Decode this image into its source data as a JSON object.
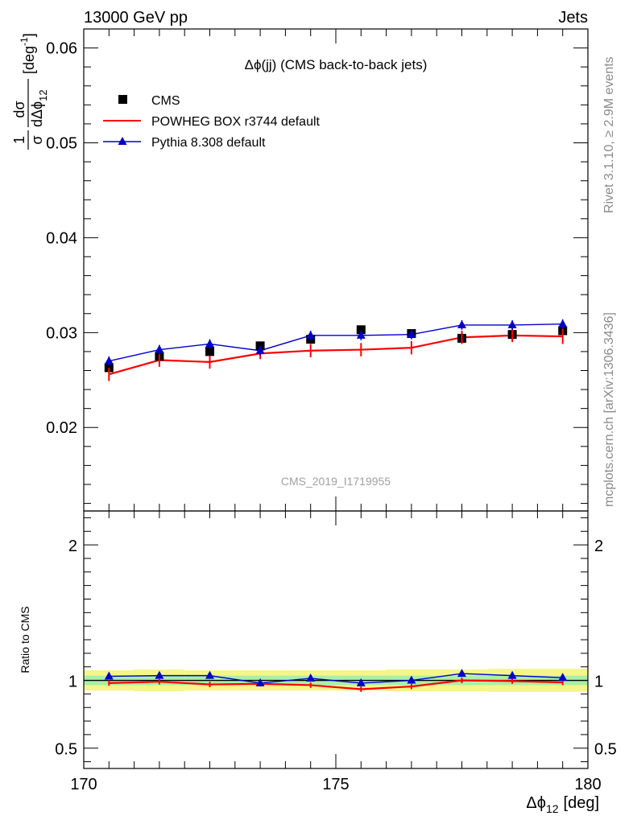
{
  "header": {
    "left": "13000 GeV pp",
    "right": "Jets"
  },
  "side_labels": {
    "rivet": "Rivet 3.1.10, ≥ 2.9M events",
    "mcplots": "mcplots.cern.ch [arXiv:1306.3436]"
  },
  "chart_data": [
    {
      "type": "line",
      "title": "Δϕ(jj) (CMS back-to-back jets)",
      "watermark": "CMS_2019_I1719955",
      "ylabel": "1/σ dσ/dΔϕ12 [deg-1]",
      "ylabel_parts": {
        "frac_num": "1",
        "frac_den": "σ",
        "d_num": "dσ",
        "d_den": "dΔϕ",
        "d_den_sub": "12",
        "unit": "[deg",
        "unit_sup": "-1",
        "unit_close": "]"
      },
      "xlim": [
        170,
        180
      ],
      "ylim": [
        0.0112,
        0.062
      ],
      "yticks": [
        0.02,
        0.03,
        0.04,
        0.05,
        0.06
      ],
      "ytick_labels": [
        "0.02",
        "0.03",
        "0.04",
        "0.05",
        "0.06"
      ],
      "legend_position": "top-left",
      "x": [
        170.5,
        171.5,
        172.5,
        173.5,
        174.5,
        175.5,
        176.5,
        177.5,
        178.5,
        179.5
      ],
      "series": [
        {
          "name": "CMS",
          "color": "#000000",
          "marker": "square",
          "values": [
            0.0263,
            0.0275,
            0.028,
            0.0286,
            0.0293,
            0.0303,
            0.0299,
            0.0294,
            0.0298,
            0.0302
          ]
        },
        {
          "name": "POWHEG BOX r3744 default",
          "color": "#ff0000",
          "marker": "none",
          "values": [
            0.0256,
            0.0271,
            0.0269,
            0.0278,
            0.0281,
            0.0282,
            0.0284,
            0.0295,
            0.0297,
            0.0296
          ],
          "errors": [
            0.0007,
            0.0007,
            0.0007,
            0.0006,
            0.0007,
            0.0007,
            0.0007,
            0.0007,
            0.0007,
            0.0008
          ]
        },
        {
          "name": "Pythia 8.308 default",
          "color": "#0000cc",
          "marker": "triangle",
          "values": [
            0.027,
            0.0282,
            0.0288,
            0.0281,
            0.0297,
            0.0297,
            0.0298,
            0.0308,
            0.0308,
            0.0309
          ],
          "errors": [
            0.0005,
            0.0005,
            0.0005,
            0.0005,
            0.0005,
            0.0005,
            0.0005,
            0.0005,
            0.0005,
            0.0005
          ]
        }
      ]
    },
    {
      "type": "line",
      "ylabel": "Ratio to CMS",
      "xlabel": "Δϕ12 [deg]",
      "xlabel_parts": {
        "main": "Δϕ",
        "sub": "12",
        "unit": "[deg]"
      },
      "xlim": [
        170,
        180
      ],
      "ylim": [
        0.35,
        2.25
      ],
      "xticks": [
        170,
        175,
        180
      ],
      "xtick_labels": [
        "170",
        "175",
        "180"
      ],
      "yticks": [
        0.5,
        1,
        2
      ],
      "ytick_labels": [
        "0.5",
        "1",
        "2"
      ],
      "bands": {
        "inner_color": "#a8f0a8",
        "outer_color": "#f5f58a",
        "inner": [
          0.035,
          0.035,
          0.035,
          0.035,
          0.035,
          0.035,
          0.035,
          0.035,
          0.035,
          0.035
        ],
        "outer": [
          0.075,
          0.08,
          0.075,
          0.075,
          0.075,
          0.075,
          0.08,
          0.08,
          0.085,
          0.085
        ]
      },
      "series": [
        {
          "name": "POWHEG BOX r3744 default",
          "color": "#ff0000",
          "values": [
            0.98,
            0.99,
            0.97,
            0.975,
            0.965,
            0.935,
            0.955,
            1.0,
            0.995,
            0.985
          ]
        },
        {
          "name": "Pythia 8.308 default",
          "color": "#0000cc",
          "values": [
            1.03,
            1.035,
            1.035,
            0.98,
            1.015,
            0.98,
            1.0,
            1.05,
            1.035,
            1.02
          ]
        }
      ]
    }
  ]
}
